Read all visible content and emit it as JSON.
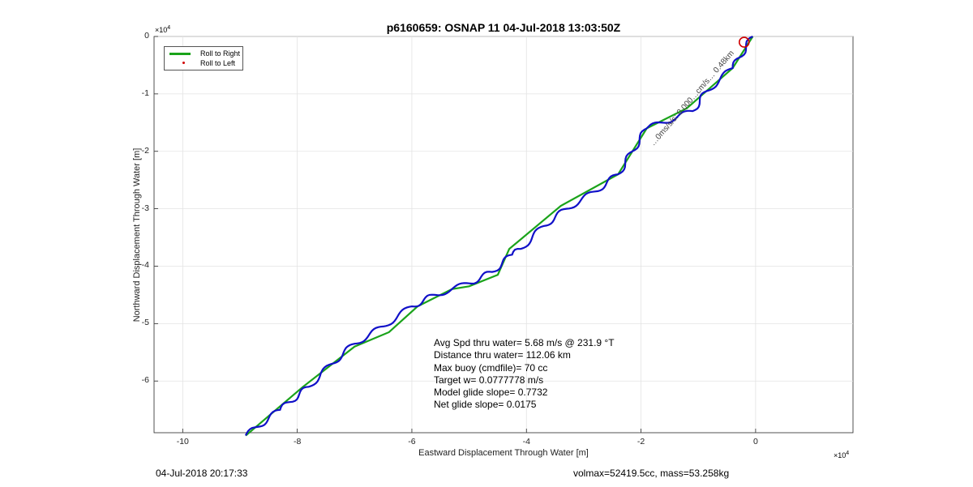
{
  "footer": {
    "left": "04-Jul-2018 20:17:33",
    "right": "volmax=52419.5cc, mass=53.258kg"
  },
  "stats": [
    "Avg Spd thru water=  5.68 m/s @ 231.9 °T",
    "Distance thru water= 112.06 km",
    "Max buoy (cmdfile)= 70 cc",
    "Target w= 0.0777778 m/s",
    "Model glide slope= 0.7732",
    "Net glide slope= 0.0175"
  ],
  "colors": {
    "roll_right": "#1aa31a",
    "roll_left": "#d00000",
    "track": "#1010c8",
    "marker": "#d00000"
  },
  "chart_data": {
    "type": "line",
    "title": "p6160659: OSNAP 11 04-Jul-2018 13:03:50Z",
    "xlabel": "Eastward Displacement Through Water [m]",
    "ylabel": "Northward Displacement Through Water [m]",
    "x_exponent_label": "×10^4",
    "y_exponent_label": "×10^4",
    "x_scale": 10000,
    "y_scale": 10000,
    "xlim": [
      -10.5,
      1.7
    ],
    "ylim": [
      -6.9,
      0
    ],
    "xticks": [
      -10,
      -8,
      -6,
      -4,
      -2,
      0
    ],
    "yticks": [
      0,
      -1,
      -2,
      -3,
      -4,
      -5,
      -6
    ],
    "grid": true,
    "legend_position": "top-left",
    "legend": [
      "Roll to Right",
      "Roll to Left"
    ],
    "annotation": "…0ms/s/s: 0.000…cm/s… 0.48km",
    "series": [
      {
        "name": "Roll to Right",
        "x": [
          -0.05,
          -0.4,
          -1.2,
          -1.9,
          -2.4,
          -3.4,
          -4.3,
          -4.5,
          -5.0,
          -5.3,
          -5.9,
          -6.4,
          -7.0,
          -7.9,
          -8.9
        ],
        "y": [
          0.0,
          -0.55,
          -1.25,
          -1.6,
          -2.4,
          -2.95,
          -3.7,
          -4.15,
          -4.35,
          -4.4,
          -4.7,
          -5.15,
          -5.4,
          -6.1,
          -6.95
        ]
      },
      {
        "name": "track",
        "x": [
          -0.05,
          -0.4,
          -0.85,
          -1.1,
          -1.9,
          -2.4,
          -2.8,
          -3.3,
          -3.7,
          -4.1,
          -4.25,
          -4.6,
          -5.0,
          -5.6,
          -6.0,
          -6.5,
          -7.0,
          -7.4,
          -7.8,
          -8.3,
          -8.9
        ],
        "y": [
          0.0,
          -0.55,
          -0.95,
          -1.3,
          -1.6,
          -2.4,
          -2.7,
          -3.0,
          -3.3,
          -3.7,
          -3.8,
          -4.1,
          -4.3,
          -4.5,
          -4.7,
          -5.05,
          -5.35,
          -5.7,
          -6.1,
          -6.5,
          -6.95
        ]
      }
    ],
    "end_marker": {
      "x": -0.2,
      "y": -0.1
    }
  }
}
